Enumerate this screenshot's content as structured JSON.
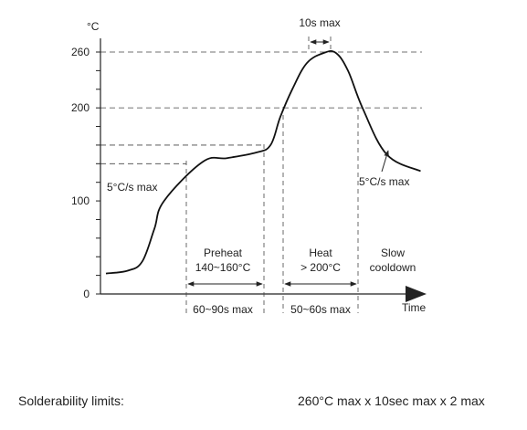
{
  "chart_data": {
    "type": "line",
    "ylabel": "°C",
    "xlabel": "Time",
    "yticks": [
      0,
      100,
      200,
      260
    ],
    "ylim": [
      0,
      270
    ],
    "grid": false,
    "series": [
      {
        "x": [
          0,
          9,
          15,
          20,
          24,
          40,
          50,
          62,
          68,
          72,
          77,
          83,
          90,
          95,
          100,
          106,
          116,
          130
        ],
        "y": [
          22,
          25,
          35,
          70,
          100,
          142,
          146,
          152,
          160,
          190,
          220,
          248,
          259,
          259,
          240,
          200,
          150,
          132
        ]
      }
    ],
    "reference_lines": [
      {
        "y": 260
      },
      {
        "y": 200
      },
      {
        "y": 160
      },
      {
        "y": 140
      }
    ],
    "annotations": {
      "peak_duration": "10s max",
      "ramp_up": "5°C/s max",
      "ramp_down": "5°C/s max",
      "zone_preheat": [
        "Preheat",
        "140~160°C"
      ],
      "zone_heat": [
        "Heat",
        "> 200°C"
      ],
      "zone_cooldown": [
        "Slow",
        "cooldown"
      ],
      "preheat_duration": "60~90s max",
      "heat_duration": "50~60s max"
    }
  },
  "footer": {
    "label": "Solderability limits:",
    "value": "260°C max x 10sec max x 2 max"
  }
}
